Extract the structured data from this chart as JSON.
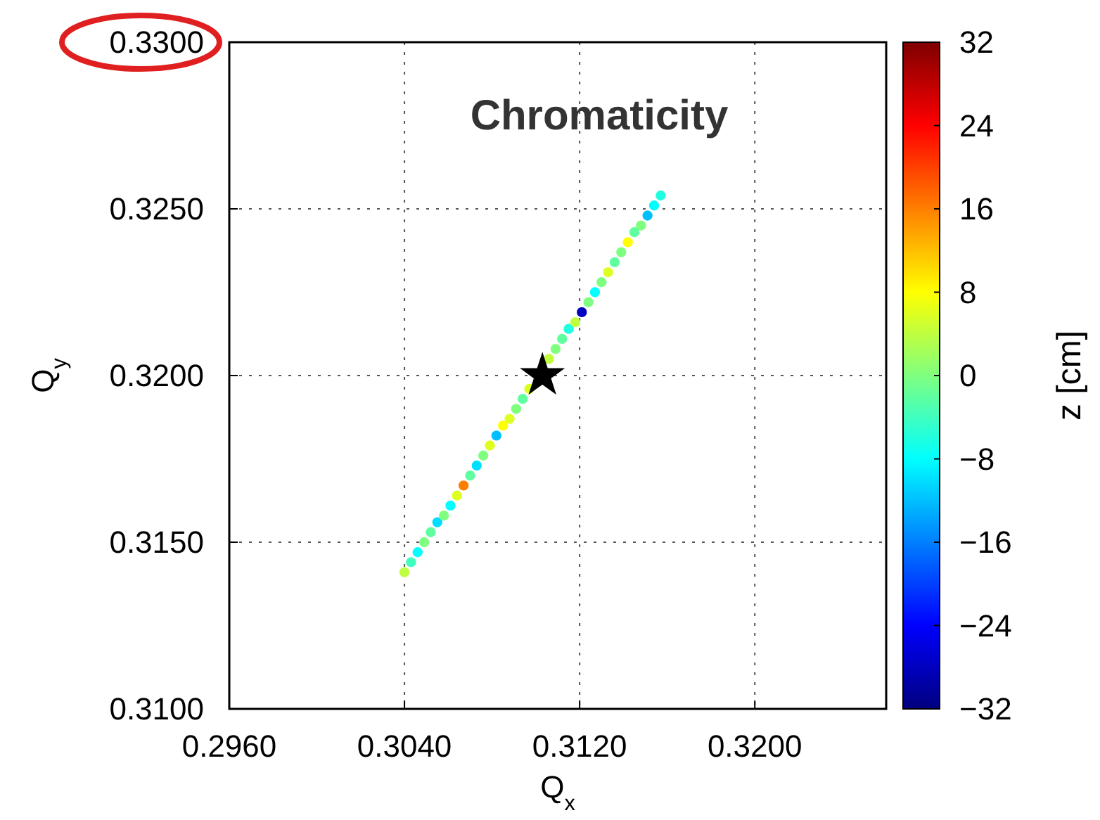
{
  "chart_data": {
    "type": "scatter",
    "title": "Chromaticity",
    "xlabel": "Q$_{x}$",
    "ylabel": "Q$_{y}$",
    "clabel": "z [cm]",
    "xlim": [
      0.296,
      0.326
    ],
    "ylim": [
      0.31,
      0.33
    ],
    "xticks": [
      {
        "value": 0.296,
        "label": "0.2960"
      },
      {
        "value": 0.304,
        "label": "0.3040"
      },
      {
        "value": 0.312,
        "label": "0.3120"
      },
      {
        "value": 0.32,
        "label": "0.3200"
      }
    ],
    "yticks": [
      {
        "value": 0.31,
        "label": "0.3100"
      },
      {
        "value": 0.315,
        "label": "0.3150"
      },
      {
        "value": 0.32,
        "label": "0.3200"
      },
      {
        "value": 0.325,
        "label": "0.3250"
      },
      {
        "value": 0.33,
        "label": "0.3300"
      }
    ],
    "clim": [
      -32,
      32
    ],
    "cticks": [
      {
        "value": -32,
        "label": "−32"
      },
      {
        "value": -24,
        "label": "−24"
      },
      {
        "value": -16,
        "label": "−16"
      },
      {
        "value": -8,
        "label": "−8"
      },
      0,
      8,
      16,
      24,
      32
    ],
    "grid": true,
    "series": [
      {
        "marker": "circle",
        "x": [
          0.304,
          0.3043,
          0.3046,
          0.3049,
          0.3052,
          0.3055,
          0.3058,
          0.3061,
          0.3064,
          0.3067,
          0.307,
          0.3073,
          0.3076,
          0.3079,
          0.3082,
          0.3085,
          0.3088,
          0.3091,
          0.3094,
          0.3097,
          0.3106,
          0.3109,
          0.3112,
          0.3115,
          0.3118,
          0.3121,
          0.3124,
          0.3127,
          0.313,
          0.3133,
          0.3136,
          0.3139,
          0.3142,
          0.3145,
          0.3148,
          0.3151,
          0.3154,
          0.3157
        ],
        "values": [
          0.3141,
          0.3144,
          0.3147,
          0.315,
          0.3153,
          0.3156,
          0.3158,
          0.3161,
          0.3164,
          0.3167,
          0.317,
          0.3173,
          0.3176,
          0.3179,
          0.3182,
          0.3185,
          0.3187,
          0.319,
          0.3193,
          0.3196,
          0.3205,
          0.3208,
          0.3211,
          0.3214,
          0.3216,
          0.3219,
          0.3222,
          0.3225,
          0.3228,
          0.3231,
          0.3234,
          0.3237,
          0.324,
          0.3243,
          0.3245,
          0.3248,
          0.3251,
          0.3254
        ],
        "cvalues": [
          4,
          -4,
          -8,
          0,
          -2,
          -10,
          0,
          -8,
          6,
          16,
          -2,
          -10,
          0,
          6,
          -12,
          8,
          6,
          0,
          -2,
          6,
          4,
          0,
          -2,
          -6,
          4,
          -28,
          0,
          -8,
          0,
          6,
          -2,
          0,
          8,
          -2,
          0,
          -12,
          -8,
          -6
        ],
        "colors": [
          "#bfff40",
          "#40ffbf",
          "#00ffff",
          "#7fff7f",
          "#5fff9f",
          "#00dfff",
          "#7fff7f",
          "#00ffff",
          "#dfff20",
          "#ff7f00",
          "#5fff9f",
          "#00dfff",
          "#7fff7f",
          "#dfff20",
          "#00bfff",
          "#ffff00",
          "#dfff20",
          "#7fff7f",
          "#5fff9f",
          "#dfff20",
          "#bfff40",
          "#7fff7f",
          "#5fff9f",
          "#20ffdf",
          "#bfff40",
          "#0000bf",
          "#7fff7f",
          "#00ffff",
          "#7fff7f",
          "#dfff20",
          "#5fff9f",
          "#7fff7f",
          "#ffff00",
          "#5fff9f",
          "#7fff7f",
          "#00bfff",
          "#00ffff",
          "#20ffdf"
        ]
      },
      {
        "marker": "star",
        "color": "#000000",
        "x": [
          0.3103
        ],
        "values": [
          0.32
        ]
      }
    ]
  }
}
